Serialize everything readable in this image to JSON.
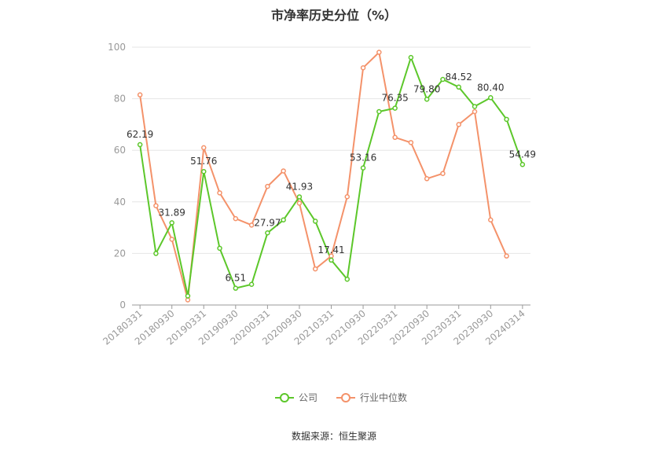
{
  "title": "市净率历史分位（%）",
  "source": "数据来源：恒生聚源",
  "chart_data": {
    "type": "line",
    "title": "市净率历史分位（%）",
    "ylim": [
      0,
      100
    ],
    "yticks": [
      0,
      20,
      40,
      60,
      80,
      100
    ],
    "grid": true,
    "legend_position": "bottom-center",
    "x": [
      "20180331",
      "20180630",
      "20180930",
      "20181231",
      "20190331",
      "20190630",
      "20190930",
      "20191231",
      "20200331",
      "20200630",
      "20200930",
      "20201231",
      "20210331",
      "20210630",
      "20210930",
      "20211231",
      "20220331",
      "20220630",
      "20220930",
      "20221231",
      "20230331",
      "20230630",
      "20230930",
      "20231231",
      "20240314"
    ],
    "xtick_labels": [
      "20180331",
      "20180930",
      "20190331",
      "20190930",
      "20200331",
      "20200930",
      "20210331",
      "20210930",
      "20220331",
      "20220930",
      "20230331",
      "20230930",
      "20240314"
    ],
    "series": [
      {
        "name": "公司",
        "color": "#5cc72a",
        "values": [
          62.19,
          20.0,
          31.89,
          3.5,
          51.76,
          22.0,
          6.51,
          8.0,
          27.97,
          33.0,
          41.93,
          32.5,
          17.41,
          10.0,
          53.16,
          75.0,
          76.35,
          96.0,
          79.8,
          87.5,
          84.52,
          77.0,
          80.4,
          72.0,
          54.49
        ],
        "labels": {
          "0": "62.19",
          "2": "31.89",
          "4": "51.76",
          "6": "6.51",
          "8": "27.97",
          "10": "41.93",
          "12": "17.41",
          "14": "53.16",
          "16": "76.35",
          "18": "79.80",
          "20": "84.52",
          "22": "80.40",
          "24": "54.49"
        }
      },
      {
        "name": "行业中位数",
        "color": "#f4926a",
        "values": [
          81.5,
          38.5,
          25.5,
          2.0,
          61.0,
          43.5,
          33.5,
          31.0,
          46.0,
          52.0,
          39.5,
          14.0,
          19.0,
          42.0,
          92.0,
          98.0,
          65.0,
          63.0,
          49.0,
          51.0,
          70.0,
          75.0,
          33.0,
          19.0,
          null
        ]
      }
    ]
  }
}
